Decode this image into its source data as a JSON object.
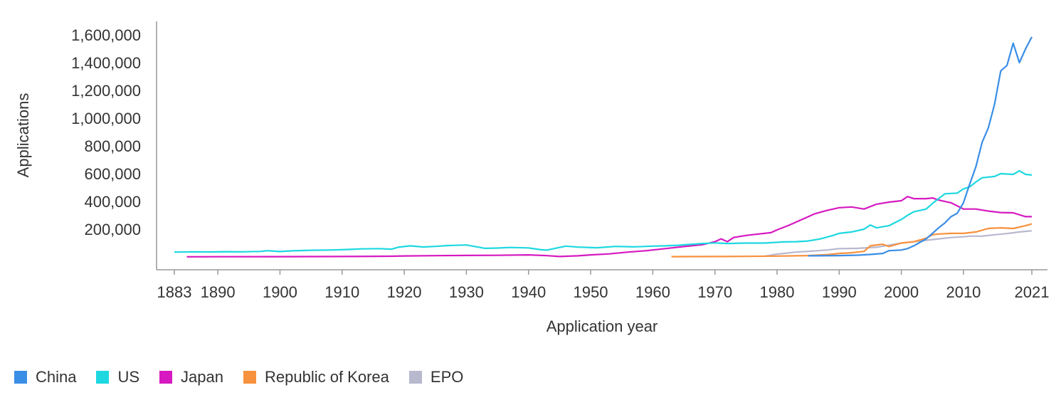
{
  "chart_data": {
    "type": "line",
    "title": "",
    "xlabel": "Application year",
    "ylabel": "Applications",
    "xlim": [
      1883,
      2021
    ],
    "ylim": [
      0,
      1600000
    ],
    "x_ticks": [
      1883,
      1890,
      1900,
      1910,
      1920,
      1930,
      1940,
      1950,
      1960,
      1970,
      1980,
      1990,
      2000,
      2010,
      2021
    ],
    "y_ticks": [
      200000,
      400000,
      600000,
      800000,
      1000000,
      1200000,
      1400000,
      1600000
    ],
    "y_tick_labels": [
      "200,000",
      "400,000",
      "600,000",
      "800,000",
      "1,000,000",
      "1,200,000",
      "1,400,000",
      "1,600,000"
    ],
    "grid": false,
    "legend_position": "bottom-left",
    "series": [
      {
        "name": "China",
        "color": "#3a8ee6",
        "points": [
          [
            1985,
            8000
          ],
          [
            1990,
            10000
          ],
          [
            1993,
            13000
          ],
          [
            1995,
            18000
          ],
          [
            1997,
            25000
          ],
          [
            1998,
            45000
          ],
          [
            2000,
            50000
          ],
          [
            2001,
            60000
          ],
          [
            2002,
            80000
          ],
          [
            2003,
            105000
          ],
          [
            2004,
            130000
          ],
          [
            2005,
            170000
          ],
          [
            2006,
            210000
          ],
          [
            2007,
            245000
          ],
          [
            2008,
            290000
          ],
          [
            2009,
            315000
          ],
          [
            2010,
            390000
          ],
          [
            2011,
            525000
          ],
          [
            2012,
            650000
          ],
          [
            2013,
            825000
          ],
          [
            2014,
            930000
          ],
          [
            2015,
            1100000
          ],
          [
            2016,
            1340000
          ],
          [
            2017,
            1380000
          ],
          [
            2018,
            1540000
          ],
          [
            2019,
            1400000
          ],
          [
            2020,
            1500000
          ],
          [
            2021,
            1585000
          ]
        ]
      },
      {
        "name": "US",
        "color": "#1dd8e0",
        "points": [
          [
            1883,
            35000
          ],
          [
            1886,
            37000
          ],
          [
            1889,
            36000
          ],
          [
            1891,
            38000
          ],
          [
            1894,
            37000
          ],
          [
            1897,
            40000
          ],
          [
            1898,
            45000
          ],
          [
            1900,
            39000
          ],
          [
            1902,
            44000
          ],
          [
            1905,
            48000
          ],
          [
            1908,
            50000
          ],
          [
            1911,
            54000
          ],
          [
            1913,
            58000
          ],
          [
            1916,
            60000
          ],
          [
            1918,
            56000
          ],
          [
            1919,
            70000
          ],
          [
            1921,
            80000
          ],
          [
            1923,
            72000
          ],
          [
            1925,
            76000
          ],
          [
            1927,
            82000
          ],
          [
            1930,
            86000
          ],
          [
            1933,
            62000
          ],
          [
            1935,
            64000
          ],
          [
            1937,
            68000
          ],
          [
            1940,
            65000
          ],
          [
            1942,
            52000
          ],
          [
            1943,
            50000
          ],
          [
            1946,
            78000
          ],
          [
            1948,
            71000
          ],
          [
            1951,
            66000
          ],
          [
            1954,
            76000
          ],
          [
            1957,
            73000
          ],
          [
            1960,
            78000
          ],
          [
            1962,
            80000
          ],
          [
            1964,
            84000
          ],
          [
            1966,
            90000
          ],
          [
            1968,
            97000
          ],
          [
            1970,
            101000
          ],
          [
            1972,
            97000
          ],
          [
            1975,
            100000
          ],
          [
            1978,
            100000
          ],
          [
            1981,
            108000
          ],
          [
            1983,
            110000
          ],
          [
            1985,
            115000
          ],
          [
            1987,
            130000
          ],
          [
            1989,
            155000
          ],
          [
            1990,
            170000
          ],
          [
            1992,
            180000
          ],
          [
            1994,
            200000
          ],
          [
            1995,
            230000
          ],
          [
            1996,
            210000
          ],
          [
            1998,
            225000
          ],
          [
            2000,
            270000
          ],
          [
            2001,
            300000
          ],
          [
            2002,
            325000
          ],
          [
            2004,
            345000
          ],
          [
            2005,
            385000
          ],
          [
            2006,
            420000
          ],
          [
            2007,
            455000
          ],
          [
            2009,
            460000
          ],
          [
            2010,
            490000
          ],
          [
            2011,
            505000
          ],
          [
            2012,
            540000
          ],
          [
            2013,
            570000
          ],
          [
            2015,
            580000
          ],
          [
            2016,
            600000
          ],
          [
            2018,
            595000
          ],
          [
            2019,
            620000
          ],
          [
            2020,
            595000
          ],
          [
            2021,
            590000
          ]
        ]
      },
      {
        "name": "Japan",
        "color": "#d619c0",
        "points": [
          [
            1885,
            1000
          ],
          [
            1890,
            1500
          ],
          [
            1900,
            2000
          ],
          [
            1910,
            3000
          ],
          [
            1918,
            5000
          ],
          [
            1920,
            7000
          ],
          [
            1925,
            9000
          ],
          [
            1930,
            11000
          ],
          [
            1935,
            12000
          ],
          [
            1940,
            15000
          ],
          [
            1943,
            9000
          ],
          [
            1945,
            3000
          ],
          [
            1948,
            8000
          ],
          [
            1950,
            15000
          ],
          [
            1953,
            22000
          ],
          [
            1956,
            35000
          ],
          [
            1959,
            45000
          ],
          [
            1962,
            60000
          ],
          [
            1965,
            75000
          ],
          [
            1968,
            88000
          ],
          [
            1970,
            110000
          ],
          [
            1971,
            130000
          ],
          [
            1972,
            110000
          ],
          [
            1973,
            140000
          ],
          [
            1975,
            155000
          ],
          [
            1977,
            165000
          ],
          [
            1979,
            175000
          ],
          [
            1980,
            195000
          ],
          [
            1982,
            230000
          ],
          [
            1984,
            270000
          ],
          [
            1986,
            310000
          ],
          [
            1988,
            335000
          ],
          [
            1990,
            355000
          ],
          [
            1992,
            360000
          ],
          [
            1994,
            345000
          ],
          [
            1996,
            380000
          ],
          [
            1998,
            395000
          ],
          [
            2000,
            405000
          ],
          [
            2001,
            435000
          ],
          [
            2002,
            420000
          ],
          [
            2004,
            420000
          ],
          [
            2005,
            425000
          ],
          [
            2006,
            410000
          ],
          [
            2008,
            390000
          ],
          [
            2010,
            345000
          ],
          [
            2012,
            345000
          ],
          [
            2014,
            330000
          ],
          [
            2016,
            320000
          ],
          [
            2018,
            318000
          ],
          [
            2020,
            290000
          ],
          [
            2021,
            290000
          ]
        ]
      },
      {
        "name": "Republic of Korea",
        "color": "#f7913d",
        "points": [
          [
            1963,
            2000
          ],
          [
            1970,
            3000
          ],
          [
            1975,
            4000
          ],
          [
            1980,
            6000
          ],
          [
            1985,
            10000
          ],
          [
            1988,
            16000
          ],
          [
            1990,
            25000
          ],
          [
            1992,
            30000
          ],
          [
            1994,
            40000
          ],
          [
            1995,
            80000
          ],
          [
            1997,
            92000
          ],
          [
            1998,
            75000
          ],
          [
            2000,
            100000
          ],
          [
            2002,
            110000
          ],
          [
            2004,
            135000
          ],
          [
            2005,
            160000
          ],
          [
            2006,
            165000
          ],
          [
            2008,
            170000
          ],
          [
            2010,
            170000
          ],
          [
            2012,
            180000
          ],
          [
            2014,
            205000
          ],
          [
            2016,
            210000
          ],
          [
            2018,
            205000
          ],
          [
            2020,
            225000
          ],
          [
            2021,
            238000
          ]
        ]
      },
      {
        "name": "EPO",
        "color": "#b8b8cf",
        "points": [
          [
            1978,
            5000
          ],
          [
            1980,
            20000
          ],
          [
            1983,
            35000
          ],
          [
            1985,
            40000
          ],
          [
            1988,
            50000
          ],
          [
            1990,
            60000
          ],
          [
            1993,
            62000
          ],
          [
            1996,
            70000
          ],
          [
            1998,
            85000
          ],
          [
            2000,
            100000
          ],
          [
            2002,
            110000
          ],
          [
            2004,
            120000
          ],
          [
            2006,
            130000
          ],
          [
            2008,
            140000
          ],
          [
            2010,
            145000
          ],
          [
            2011,
            150000
          ],
          [
            2013,
            150000
          ],
          [
            2015,
            160000
          ],
          [
            2017,
            168000
          ],
          [
            2019,
            180000
          ],
          [
            2021,
            188000
          ]
        ]
      }
    ]
  }
}
